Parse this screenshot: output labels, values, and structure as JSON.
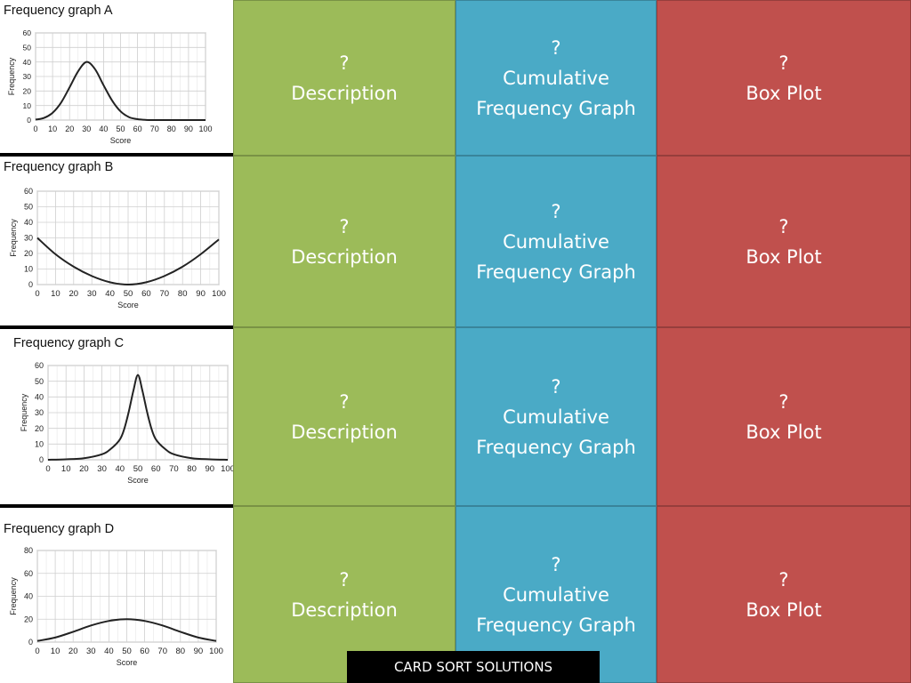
{
  "colors": {
    "description": "#9cbb59",
    "cumulative": "#4aaac6",
    "boxplot": "#c0504d",
    "curve": "#222222",
    "grid": "#cfcfcf"
  },
  "card_labels": {
    "description": {
      "q": "?",
      "line1": "Description",
      "line2": ""
    },
    "cumulative": {
      "q": "?",
      "line1": "Cumulative",
      "line2": "Frequency Graph"
    },
    "boxplot": {
      "q": "?",
      "line1": "Box Plot",
      "line2": ""
    }
  },
  "footer": {
    "label": "CARD SORT SOLUTIONS"
  },
  "chart_data": [
    {
      "type": "line",
      "title": "Frequency graph A",
      "xlabel": "Score",
      "ylabel": "Frequency",
      "xlim": [
        0,
        100
      ],
      "ylim": [
        0,
        60
      ],
      "x_ticks": [
        "0",
        "10",
        "20",
        "30",
        "40",
        "50",
        "60",
        "70",
        "80",
        "90",
        "100"
      ],
      "y_ticks": [
        "0",
        "10",
        "20",
        "30",
        "40",
        "50",
        "60"
      ],
      "grid": true,
      "curve": {
        "x": [
          0,
          5,
          10,
          15,
          20,
          25,
          30,
          35,
          40,
          45,
          50,
          55,
          60,
          65,
          70,
          80,
          90,
          100
        ],
        "y": [
          0.3,
          1.5,
          5,
          12,
          22.5,
          33.5,
          40,
          35,
          24,
          13.5,
          6,
          2,
          0.6,
          0.1,
          0,
          0,
          0,
          0
        ]
      }
    },
    {
      "type": "line",
      "title": "Frequency graph B",
      "xlabel": "Score",
      "ylabel": "Frequency",
      "xlim": [
        0,
        100
      ],
      "ylim": [
        0,
        60
      ],
      "x_ticks": [
        "0",
        "10",
        "20",
        "30",
        "40",
        "50",
        "60",
        "70",
        "80",
        "90",
        "100"
      ],
      "y_ticks": [
        "0",
        "10",
        "20",
        "30",
        "40",
        "50",
        "60"
      ],
      "grid": true,
      "curve": {
        "x": [
          0,
          10,
          20,
          30,
          40,
          50,
          60,
          70,
          80,
          90,
          100
        ],
        "y": [
          30,
          19.5,
          11.5,
          5.5,
          1.5,
          0,
          1.5,
          5.5,
          11.5,
          19.5,
          29
        ]
      }
    },
    {
      "type": "line",
      "title": "Frequency graph C",
      "xlabel": "Score",
      "ylabel": "Frequency",
      "xlim": [
        0,
        100
      ],
      "ylim": [
        0,
        60
      ],
      "x_ticks": [
        "0",
        "10",
        "20",
        "30",
        "40",
        "50",
        "60",
        "70",
        "80",
        "90",
        "100"
      ],
      "y_ticks": [
        "0",
        "10",
        "20",
        "30",
        "40",
        "50",
        "60"
      ],
      "grid": true,
      "curve": {
        "x": [
          0,
          10,
          20,
          30,
          35,
          40,
          42.5,
          45,
          47.5,
          50,
          52.5,
          55,
          57.5,
          60,
          65,
          70,
          80,
          90,
          100
        ],
        "y": [
          0,
          0.3,
          1,
          3.5,
          7,
          13,
          20,
          31,
          44,
          54,
          44,
          31,
          20,
          13,
          7,
          3.5,
          1,
          0.3,
          0
        ]
      }
    },
    {
      "type": "line",
      "title": "Frequency graph D",
      "xlabel": "Score",
      "ylabel": "Frequency",
      "xlim": [
        0,
        100
      ],
      "ylim": [
        0,
        80
      ],
      "x_ticks": [
        "0",
        "10",
        "20",
        "30",
        "40",
        "50",
        "60",
        "70",
        "80",
        "90",
        "100"
      ],
      "y_ticks": [
        "0",
        "20",
        "40",
        "60",
        "80"
      ],
      "grid": true,
      "curve": {
        "x": [
          0,
          10,
          20,
          30,
          40,
          50,
          60,
          70,
          80,
          90,
          100
        ],
        "y": [
          1,
          4,
          9,
          14.5,
          18.5,
          20,
          18.5,
          14.5,
          9,
          4,
          1
        ]
      }
    }
  ]
}
